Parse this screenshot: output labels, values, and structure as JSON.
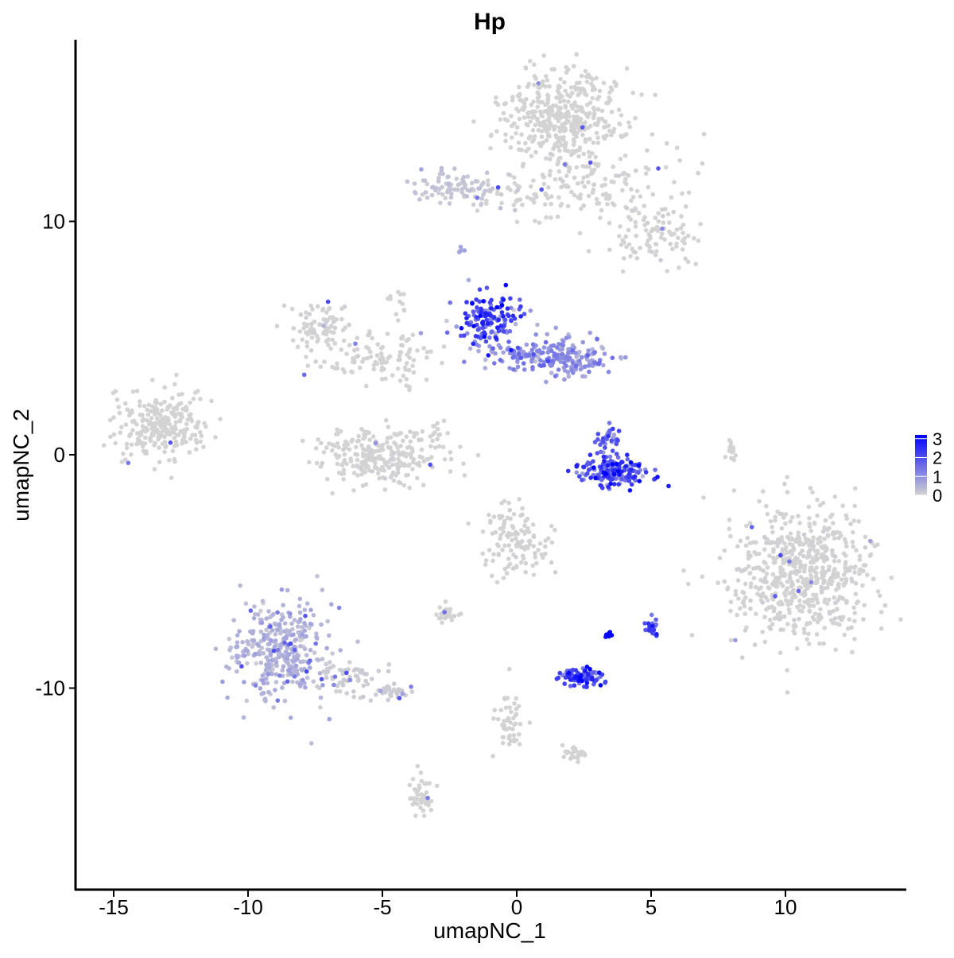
{
  "chart_data": {
    "type": "scatter",
    "title": "Hp",
    "xlabel": "umapNC_1",
    "ylabel": "umapNC_2",
    "xlim": [
      -16.4,
      14.6
    ],
    "ylim": [
      -18.5,
      17.8
    ],
    "x_ticks": [
      -15,
      -10,
      -5,
      0,
      5,
      10
    ],
    "y_ticks": [
      -10,
      0,
      10
    ],
    "grid": false,
    "legend": {
      "position": "right",
      "type": "colorbar",
      "min": 0,
      "max": 3.2,
      "labels": [
        "3",
        "2",
        "1",
        "0"
      ],
      "color_low": "#d3d3d3",
      "color_high": "#0000ff"
    },
    "clusters": [
      {
        "cx": 1.7,
        "cy": 14.5,
        "sx": 1.1,
        "sy": 1.0,
        "n": 420,
        "expr": 0.0
      },
      {
        "cx": 3.0,
        "cy": 11.5,
        "sx": 1.8,
        "sy": 0.9,
        "n": 140,
        "expr": 0.05
      },
      {
        "cx": -2.0,
        "cy": 11.5,
        "sx": 0.9,
        "sy": 0.4,
        "n": 90,
        "expr": 0.2
      },
      {
        "cx": 0.8,
        "cy": 11.3,
        "sx": 1.2,
        "sy": 0.3,
        "n": 40,
        "expr": 0.0
      },
      {
        "cx": 5.2,
        "cy": 9.3,
        "sx": 1.0,
        "sy": 0.6,
        "n": 90,
        "expr": 0.05
      },
      {
        "cx": -13.2,
        "cy": 1.2,
        "sx": 0.85,
        "sy": 0.75,
        "n": 260,
        "expr": 0.0
      },
      {
        "cx": -7.3,
        "cy": 5.5,
        "sx": 0.5,
        "sy": 0.5,
        "n": 80,
        "expr": 0.05
      },
      {
        "cx": -5.7,
        "cy": 4.3,
        "sx": 1.0,
        "sy": 0.7,
        "n": 60,
        "expr": 0.05
      },
      {
        "cx": -4.3,
        "cy": 4.0,
        "sx": 0.9,
        "sy": 0.6,
        "n": 50,
        "expr": 0.0
      },
      {
        "cx": -5.1,
        "cy": 0.0,
        "sx": 1.2,
        "sy": 0.6,
        "n": 260,
        "expr": 0.05
      },
      {
        "cx": -1.0,
        "cy": 5.8,
        "sx": 0.6,
        "sy": 0.5,
        "n": 150,
        "expr": 1.9
      },
      {
        "cx": 0.6,
        "cy": 4.3,
        "sx": 1.1,
        "sy": 0.4,
        "n": 130,
        "expr": 1.0
      },
      {
        "cx": 2.1,
        "cy": 4.1,
        "sx": 0.7,
        "sy": 0.4,
        "n": 100,
        "expr": 0.9
      },
      {
        "cx": 3.6,
        "cy": -0.7,
        "sx": 0.6,
        "sy": 0.35,
        "n": 160,
        "expr": 2.0
      },
      {
        "cx": 3.4,
        "cy": 0.6,
        "sx": 0.25,
        "sy": 0.5,
        "n": 40,
        "expr": 1.6
      },
      {
        "cx": 10.6,
        "cy": -5.0,
        "sx": 1.35,
        "sy": 1.45,
        "n": 650,
        "expr": 0.05
      },
      {
        "cx": 0.0,
        "cy": -3.6,
        "sx": 0.6,
        "sy": 0.7,
        "n": 120,
        "expr": 0.05
      },
      {
        "cx": -8.9,
        "cy": -8.3,
        "sx": 0.9,
        "sy": 1.1,
        "n": 340,
        "expr": 0.45
      },
      {
        "cx": -6.0,
        "cy": -9.5,
        "sx": 0.9,
        "sy": 0.4,
        "n": 70,
        "expr": 0.1
      },
      {
        "cx": -4.6,
        "cy": -10.2,
        "sx": 0.4,
        "sy": 0.2,
        "n": 30,
        "expr": 0.1
      },
      {
        "cx": -2.6,
        "cy": -6.8,
        "sx": 0.3,
        "sy": 0.2,
        "n": 30,
        "expr": 0.05
      },
      {
        "cx": 2.4,
        "cy": -9.5,
        "sx": 0.35,
        "sy": 0.2,
        "n": 90,
        "expr": 2.0
      },
      {
        "cx": 3.4,
        "cy": -7.7,
        "sx": 0.07,
        "sy": 0.06,
        "n": 12,
        "expr": 3.2
      },
      {
        "cx": 5.0,
        "cy": -7.4,
        "sx": 0.15,
        "sy": 0.25,
        "n": 20,
        "expr": 1.8
      },
      {
        "cx": -0.3,
        "cy": -11.5,
        "sx": 0.25,
        "sy": 0.6,
        "n": 50,
        "expr": 0.0
      },
      {
        "cx": 2.2,
        "cy": -12.8,
        "sx": 0.25,
        "sy": 0.15,
        "n": 25,
        "expr": 0.0
      },
      {
        "cx": -3.5,
        "cy": -14.8,
        "sx": 0.2,
        "sy": 0.5,
        "n": 50,
        "expr": 0.0
      },
      {
        "cx": 8.0,
        "cy": 0.2,
        "sx": 0.1,
        "sy": 0.35,
        "n": 15,
        "expr": 0.0
      },
      {
        "cx": -2.9,
        "cy": 0.8,
        "sx": 0.15,
        "sy": 0.3,
        "n": 10,
        "expr": 0.0
      },
      {
        "cx": -4.5,
        "cy": 6.5,
        "sx": 0.2,
        "sy": 0.5,
        "n": 12,
        "expr": 0.0
      },
      {
        "cx": -2.1,
        "cy": 8.7,
        "sx": 0.07,
        "sy": 0.07,
        "n": 6,
        "expr": 0.5
      }
    ]
  }
}
